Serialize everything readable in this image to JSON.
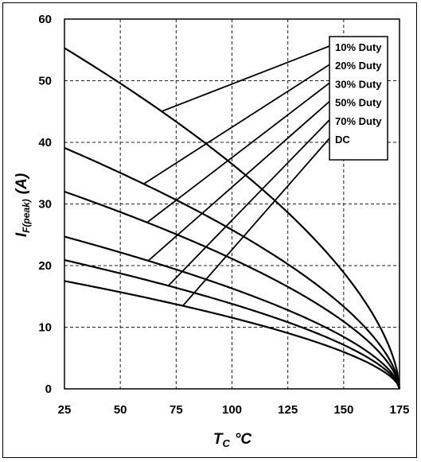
{
  "chart_data": {
    "type": "line",
    "xlabel_main": "T",
    "xlabel_sub": "C",
    "xlabel_unit": "°C",
    "ylabel_main": "I",
    "ylabel_sub": "F(peak)",
    "ylabel_unit": "(A)",
    "xlim": [
      25,
      175
    ],
    "ylim": [
      0,
      60
    ],
    "xticks": [
      "25",
      "50",
      "75",
      "100",
      "125",
      "150",
      "175"
    ],
    "yticks": [
      "0",
      "10",
      "20",
      "30",
      "40",
      "50",
      "60"
    ],
    "grid": true,
    "legend_position": "top-right",
    "legend": [
      "10% Duty",
      "20% Duty",
      "30% Duty",
      "50% Duty",
      "70% Duty",
      "DC"
    ],
    "series": [
      {
        "name": "10% Duty",
        "start_value": 55.3
      },
      {
        "name": "20% Duty",
        "start_value": 39.1
      },
      {
        "name": "30% Duty",
        "start_value": 32.0
      },
      {
        "name": "50% Duty",
        "start_value": 24.7
      },
      {
        "name": "70% Duty",
        "start_value": 20.9
      },
      {
        "name": "DC",
        "start_value": 17.5
      }
    ],
    "series_end": {
      "x": 175,
      "y": 0
    },
    "curve_exponent": 0.6,
    "legend_pointers": [
      {
        "name": "10% Duty",
        "x": 68.5
      },
      {
        "name": "20% Duty",
        "x": 60.5
      },
      {
        "name": "30% Duty",
        "x": 62.0
      },
      {
        "name": "50% Duty",
        "x": 62.5
      },
      {
        "name": "70% Duty",
        "x": 71.5
      },
      {
        "name": "DC",
        "x": 78.0
      }
    ]
  }
}
